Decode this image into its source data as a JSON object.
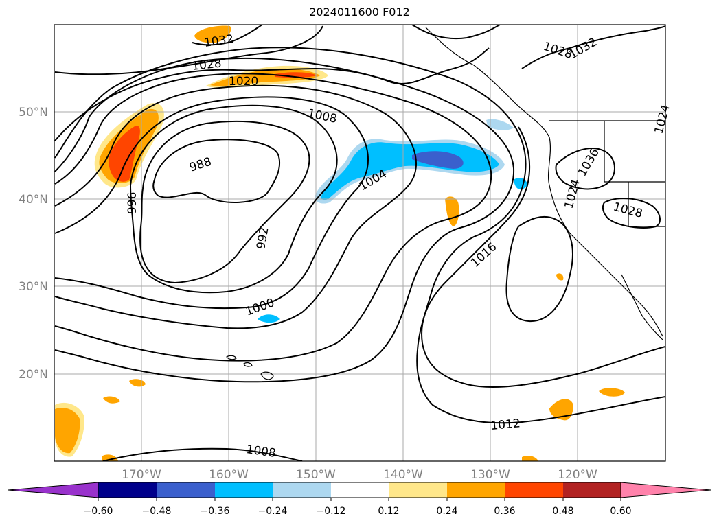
{
  "title": "2024011600 F012",
  "lat_labels": [
    "50°N",
    "40°N",
    "30°N",
    "20°N"
  ],
  "lon_labels": [
    "170°W",
    "160°W",
    "150°W",
    "140°W",
    "130°W",
    "120°W"
  ],
  "contour_labels": [
    "1032",
    "1028",
    "1020",
    "1008",
    "988",
    "996",
    "992",
    "1000",
    "1004",
    "1016",
    "1012",
    "1008",
    "1028",
    "1032",
    "1036",
    "1024",
    "1028",
    "1024"
  ],
  "colorbar": {
    "ticks": [
      "−0.60",
      "−0.48",
      "−0.36",
      "−0.24",
      "−0.12",
      "0.12",
      "0.24",
      "0.36",
      "0.48",
      "0.60"
    ],
    "colors": [
      "#9932cc",
      "#00008b",
      "#3a5fcd",
      "#00bfff",
      "#add8f0",
      "#ffffff",
      "#ffe78a",
      "#ffa500",
      "#ff4500",
      "#b22222",
      "#ff82ab"
    ]
  }
}
